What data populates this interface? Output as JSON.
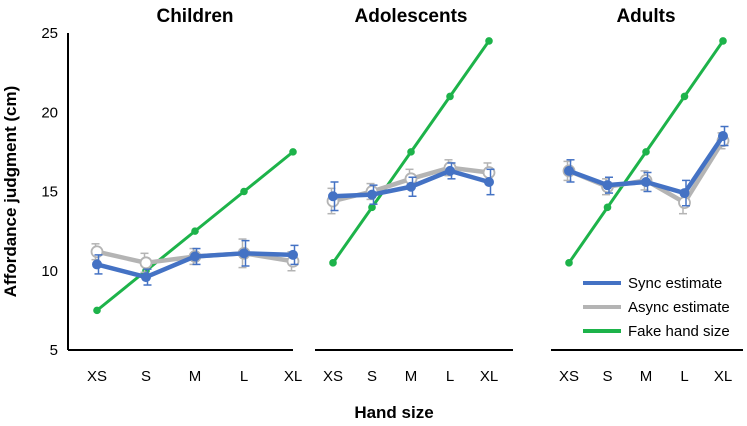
{
  "chart_data": {
    "type": "line",
    "ylabel": "Affordance judgment (cm)",
    "xlabel": "Hand size",
    "ylim": [
      5,
      25
    ],
    "yticks": [
      "5",
      "10",
      "15",
      "20",
      "25"
    ],
    "categories": [
      "XS",
      "S",
      "M",
      "L",
      "XL"
    ],
    "legend": [
      {
        "name": "Sync estimate",
        "color": "#4472c4"
      },
      {
        "name": "Async estimate",
        "color": "#b4b4b4"
      },
      {
        "name": "Fake hand size",
        "color": "#1db34a"
      }
    ],
    "panels": [
      {
        "title": "Children",
        "series": [
          {
            "name": "Fake hand size",
            "values": [
              7.5,
              10.0,
              12.5,
              15.0,
              17.5
            ]
          },
          {
            "name": "Async estimate",
            "values": [
              11.2,
              10.5,
              10.9,
              11.1,
              10.6
            ],
            "err": [
              0.5,
              0.6,
              0.5,
              0.9,
              0.6
            ]
          },
          {
            "name": "Sync estimate",
            "values": [
              10.4,
              9.6,
              10.9,
              11.1,
              11.0
            ],
            "err": [
              0.6,
              0.5,
              0.5,
              0.8,
              0.6
            ]
          }
        ]
      },
      {
        "title": "Adolescents",
        "series": [
          {
            "name": "Fake hand size",
            "values": [
              10.5,
              14.0,
              17.5,
              21.0,
              24.5
            ]
          },
          {
            "name": "Async estimate",
            "values": [
              14.4,
              15.0,
              15.8,
              16.5,
              16.2
            ],
            "err": [
              0.8,
              0.5,
              0.6,
              0.5,
              0.6
            ]
          },
          {
            "name": "Sync estimate",
            "values": [
              14.7,
              14.8,
              15.3,
              16.3,
              15.6
            ],
            "err": [
              0.9,
              0.6,
              0.6,
              0.5,
              0.8
            ]
          }
        ]
      },
      {
        "title": "Adults",
        "series": [
          {
            "name": "Fake hand size",
            "values": [
              10.5,
              14.0,
              17.5,
              21.0,
              24.5
            ]
          },
          {
            "name": "Async estimate",
            "values": [
              16.3,
              15.3,
              15.7,
              14.3,
              18.2
            ],
            "err": [
              0.6,
              0.5,
              0.6,
              0.7,
              0.5
            ]
          },
          {
            "name": "Sync estimate",
            "values": [
              16.3,
              15.4,
              15.6,
              14.9,
              18.5
            ],
            "err": [
              0.7,
              0.5,
              0.6,
              0.8,
              0.6
            ]
          }
        ]
      }
    ]
  }
}
